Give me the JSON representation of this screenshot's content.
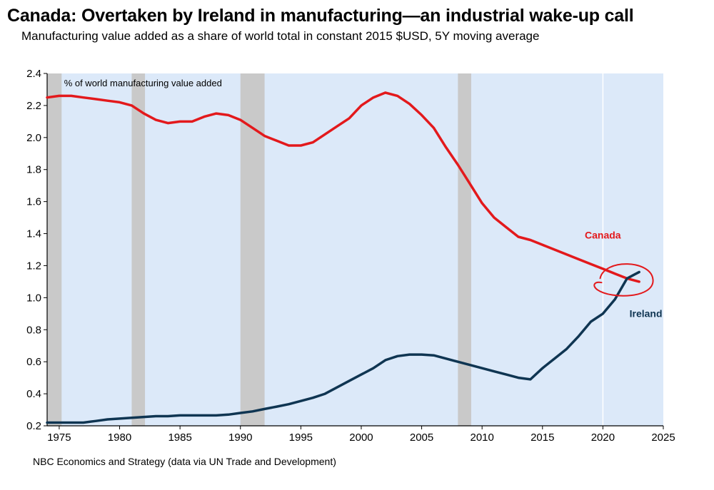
{
  "header": {
    "title": "Canada: Overtaken by Ireland in manufacturing—an industrial wake-up call",
    "subtitle": "Manufacturing value added as a share of world total in constant 2015 $USD, 5Y moving average"
  },
  "footer": {
    "source": "NBC Economics and Strategy (data via UN Trade and Development)"
  },
  "colors": {
    "plot_background": "#dce9f9",
    "recession_band": "#c9c9c9",
    "canada": "#e3191c",
    "ireland": "#0f3552",
    "highlight_circle": "#e3191c"
  },
  "chart_data": {
    "type": "line",
    "annotation": "% of world manufacturing value added",
    "xlim": [
      1974,
      2025
    ],
    "ylim": [
      0.2,
      2.4
    ],
    "x_ticks": [
      1975,
      1980,
      1985,
      1990,
      1995,
      2000,
      2005,
      2010,
      2015,
      2020,
      2025
    ],
    "x_tick_labels": [
      "1975",
      "1980",
      "1985",
      "1990",
      "1995",
      "2000",
      "2005",
      "2010",
      "2015",
      "2020",
      "2025"
    ],
    "y_ticks": [
      0.2,
      0.4,
      0.6,
      0.8,
      1.0,
      1.2,
      1.4,
      1.6,
      1.8,
      2.0,
      2.2,
      2.4
    ],
    "y_tick_labels": [
      "0.2",
      "0.4",
      "0.6",
      "0.8",
      "1.0",
      "1.2",
      "1.4",
      "1.6",
      "1.8",
      "2.0",
      "2.2",
      "2.4"
    ],
    "shaded_periods": [
      [
        1974,
        1975.2
      ],
      [
        1981,
        1982.1
      ],
      [
        1990,
        1992
      ],
      [
        2008,
        2009.1
      ]
    ],
    "reference_year": 2020,
    "highlight_point": {
      "x": 2021.9,
      "y": 1.13
    },
    "series": [
      {
        "name": "Canada",
        "x": [
          1974,
          1975,
          1976,
          1977,
          1978,
          1979,
          1980,
          1981,
          1982,
          1983,
          1984,
          1985,
          1986,
          1987,
          1988,
          1989,
          1990,
          1991,
          1992,
          1993,
          1994,
          1995,
          1996,
          1997,
          1998,
          1999,
          2000,
          2001,
          2002,
          2003,
          2004,
          2005,
          2006,
          2007,
          2008,
          2009,
          2010,
          2011,
          2012,
          2013,
          2014,
          2015,
          2016,
          2017,
          2018,
          2019,
          2020,
          2021,
          2022,
          2023
        ],
        "values": [
          2.25,
          2.26,
          2.26,
          2.25,
          2.24,
          2.23,
          2.22,
          2.2,
          2.15,
          2.11,
          2.09,
          2.1,
          2.1,
          2.13,
          2.15,
          2.14,
          2.11,
          2.06,
          2.01,
          1.98,
          1.95,
          1.95,
          1.97,
          2.02,
          2.07,
          2.12,
          2.2,
          2.25,
          2.28,
          2.26,
          2.21,
          2.14,
          2.06,
          1.94,
          1.83,
          1.71,
          1.59,
          1.5,
          1.44,
          1.38,
          1.36,
          1.33,
          1.3,
          1.27,
          1.24,
          1.21,
          1.18,
          1.15,
          1.12,
          1.1
        ]
      },
      {
        "name": "Ireland",
        "x": [
          1974,
          1975,
          1976,
          1977,
          1978,
          1979,
          1980,
          1981,
          1982,
          1983,
          1984,
          1985,
          1986,
          1987,
          1988,
          1989,
          1990,
          1991,
          1992,
          1993,
          1994,
          1995,
          1996,
          1997,
          1998,
          1999,
          2000,
          2001,
          2002,
          2003,
          2004,
          2005,
          2006,
          2007,
          2008,
          2009,
          2010,
          2011,
          2012,
          2013,
          2014,
          2015,
          2016,
          2017,
          2018,
          2019,
          2020,
          2021,
          2022,
          2023
        ],
        "values": [
          0.22,
          0.22,
          0.22,
          0.22,
          0.23,
          0.24,
          0.245,
          0.25,
          0.255,
          0.26,
          0.26,
          0.265,
          0.265,
          0.265,
          0.265,
          0.27,
          0.28,
          0.29,
          0.305,
          0.32,
          0.335,
          0.355,
          0.375,
          0.4,
          0.44,
          0.48,
          0.52,
          0.56,
          0.61,
          0.635,
          0.645,
          0.645,
          0.64,
          0.62,
          0.6,
          0.58,
          0.56,
          0.54,
          0.52,
          0.5,
          0.49,
          0.56,
          0.62,
          0.68,
          0.76,
          0.85,
          0.9,
          0.99,
          1.12,
          1.16
        ]
      }
    ],
    "series_labels": [
      {
        "name": "Canada",
        "x": 2018.5,
        "y": 1.37
      },
      {
        "name": "Ireland",
        "x": 2022.2,
        "y": 0.88
      }
    ]
  }
}
